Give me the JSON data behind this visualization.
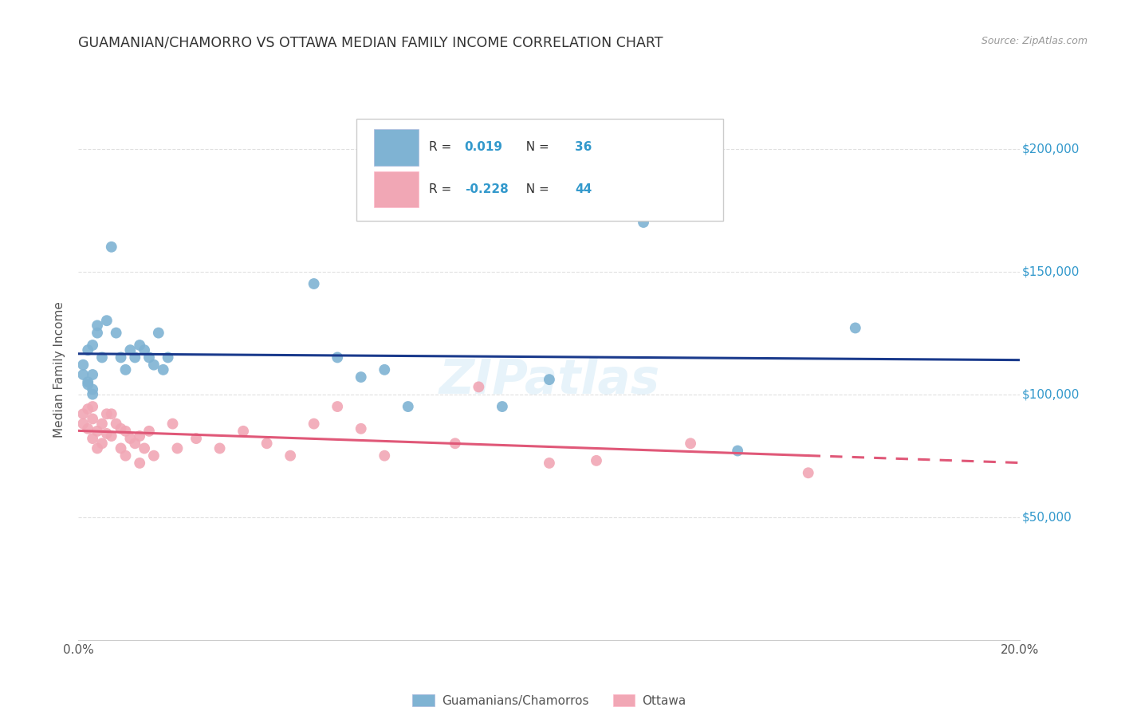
{
  "title": "GUAMANIAN/CHAMORRO VS OTTAWA MEDIAN FAMILY INCOME CORRELATION CHART",
  "source": "Source: ZipAtlas.com",
  "ylabel": "Median Family Income",
  "xlim": [
    0.0,
    0.2
  ],
  "ylim": [
    0,
    220000
  ],
  "yticks": [
    50000,
    100000,
    150000,
    200000
  ],
  "ytick_labels": [
    "$50,000",
    "$100,000",
    "$150,000",
    "$200,000"
  ],
  "xticks": [
    0.0,
    0.05,
    0.1,
    0.15,
    0.2
  ],
  "xtick_labels": [
    "0.0%",
    "",
    "",
    "",
    "20.0%"
  ],
  "background_color": "#ffffff",
  "grid_color": "#e0e0e0",
  "blue_color": "#7fb3d3",
  "pink_color": "#f1a7b5",
  "line_blue": "#1a3a8c",
  "line_pink": "#e05878",
  "label1": "Guamanians/Chamorros",
  "label2": "Ottawa",
  "blue_x": [
    0.001,
    0.001,
    0.002,
    0.002,
    0.003,
    0.003,
    0.003,
    0.004,
    0.004,
    0.005,
    0.006,
    0.007,
    0.008,
    0.009,
    0.01,
    0.011,
    0.012,
    0.013,
    0.014,
    0.015,
    0.016,
    0.017,
    0.018,
    0.019,
    0.05,
    0.055,
    0.06,
    0.065,
    0.07,
    0.09,
    0.1,
    0.12,
    0.14,
    0.165,
    0.002,
    0.003
  ],
  "blue_y": [
    108000,
    112000,
    105000,
    118000,
    100000,
    102000,
    120000,
    125000,
    128000,
    115000,
    130000,
    160000,
    125000,
    115000,
    110000,
    118000,
    115000,
    120000,
    118000,
    115000,
    112000,
    125000,
    110000,
    115000,
    145000,
    115000,
    107000,
    110000,
    95000,
    95000,
    106000,
    170000,
    77000,
    127000,
    104000,
    108000
  ],
  "pink_x": [
    0.001,
    0.001,
    0.002,
    0.002,
    0.003,
    0.003,
    0.004,
    0.004,
    0.005,
    0.005,
    0.006,
    0.006,
    0.007,
    0.007,
    0.008,
    0.009,
    0.009,
    0.01,
    0.01,
    0.011,
    0.012,
    0.013,
    0.013,
    0.014,
    0.015,
    0.016,
    0.02,
    0.021,
    0.025,
    0.03,
    0.035,
    0.04,
    0.045,
    0.05,
    0.055,
    0.06,
    0.065,
    0.08,
    0.085,
    0.1,
    0.11,
    0.13,
    0.155,
    0.003
  ],
  "pink_y": [
    92000,
    88000,
    86000,
    94000,
    82000,
    90000,
    85000,
    78000,
    80000,
    88000,
    92000,
    84000,
    83000,
    92000,
    88000,
    86000,
    78000,
    85000,
    75000,
    82000,
    80000,
    83000,
    72000,
    78000,
    85000,
    75000,
    88000,
    78000,
    82000,
    78000,
    85000,
    80000,
    75000,
    88000,
    95000,
    86000,
    75000,
    80000,
    103000,
    72000,
    73000,
    80000,
    68000,
    95000
  ]
}
